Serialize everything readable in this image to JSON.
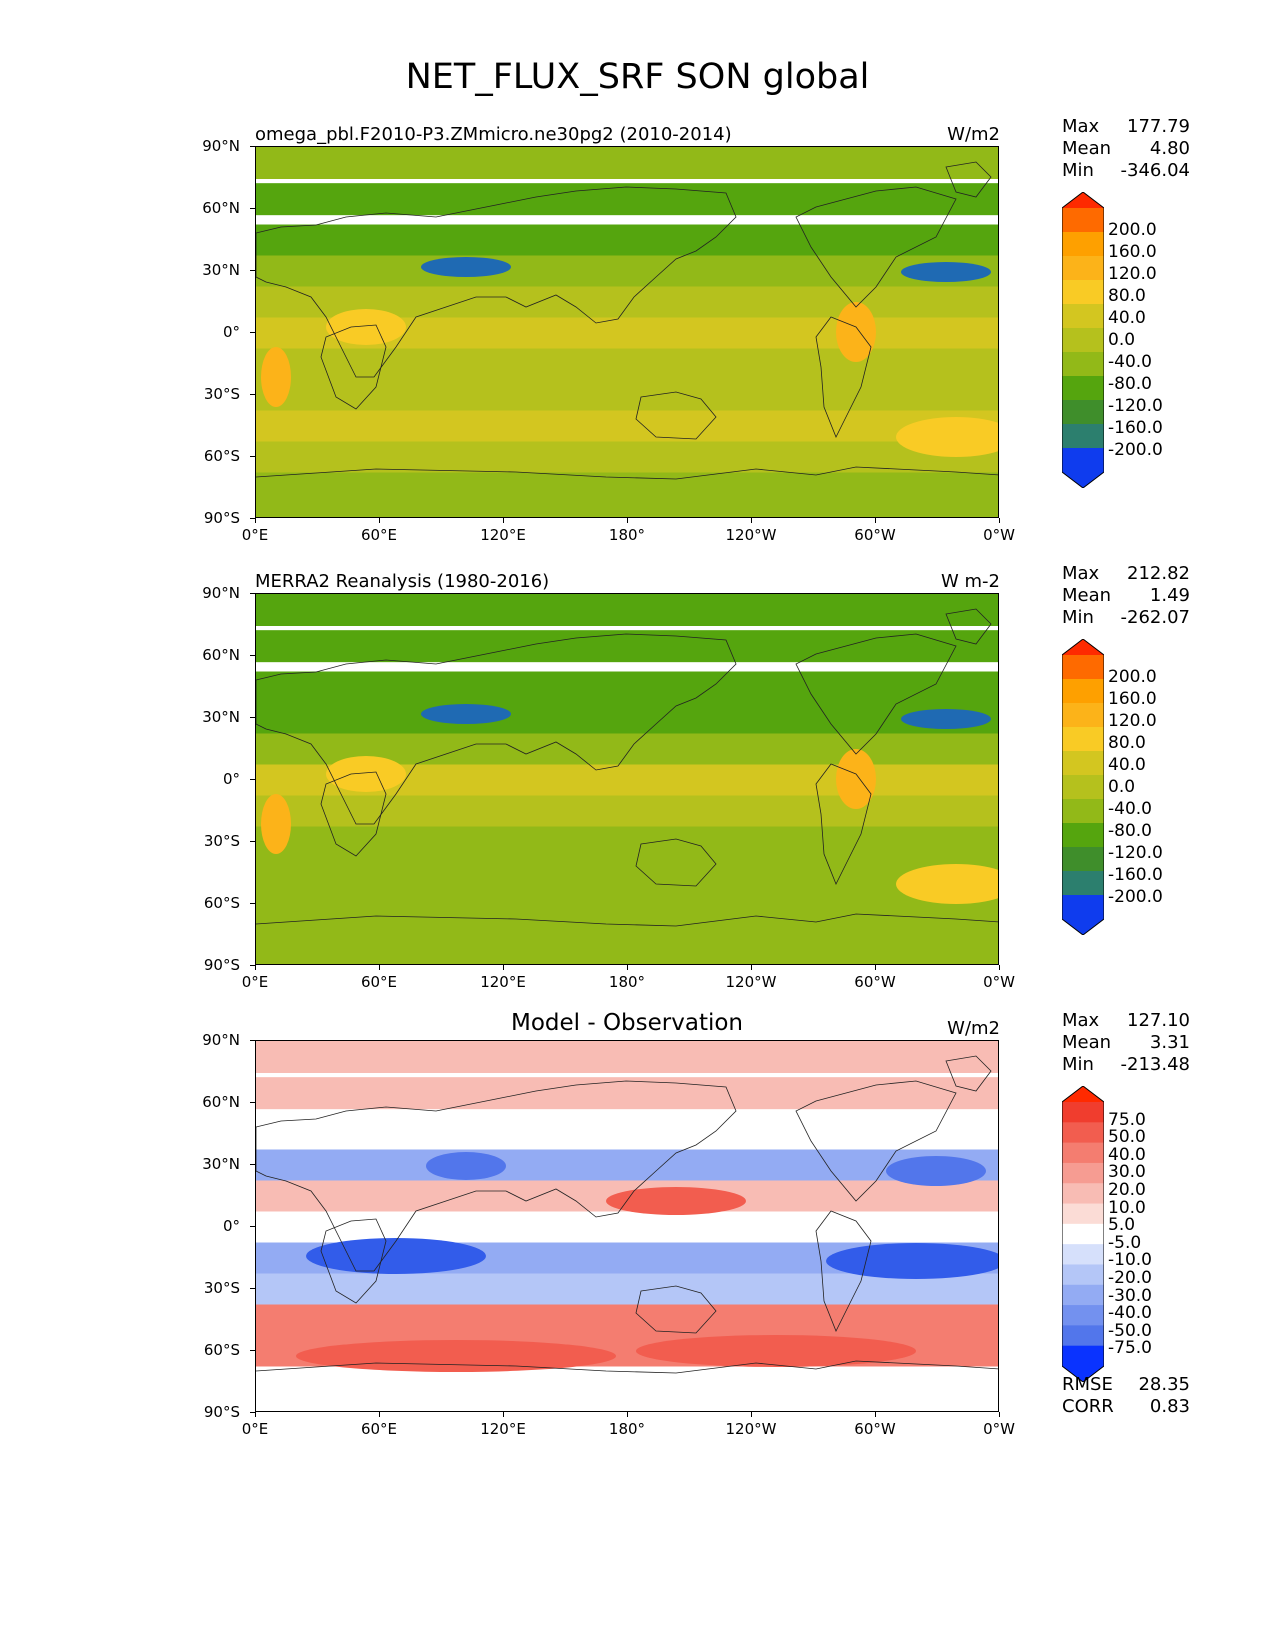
{
  "figure": {
    "title": "NET_FLUX_SRF SON global"
  },
  "axes": {
    "yticks": [
      "90°N",
      "60°N",
      "30°N",
      "0°",
      "30°S",
      "60°S",
      "90°S"
    ],
    "xticks": [
      "0°E",
      "60°E",
      "120°E",
      "180°",
      "120°W",
      "60°W",
      "0°W"
    ]
  },
  "panels": [
    {
      "left_title": "omega_pbl.F2010-P3.ZMmicro.ne30pg2 (2010-2014)",
      "center_title": "",
      "units": "W/m2",
      "stats": [
        {
          "label": "Max",
          "value": "177.79"
        },
        {
          "label": "Mean",
          "value": "4.80"
        },
        {
          "label": "Min",
          "value": "-346.04"
        }
      ],
      "colorbar": {
        "labels": [
          "200.0",
          "160.0",
          "120.0",
          "80.0",
          "40.0",
          "0.0",
          "-40.0",
          "-80.0",
          "-120.0",
          "-160.0",
          "-200.0"
        ],
        "colors": [
          "#fe2a00",
          "#fe6a00",
          "#fea000",
          "#fcb319",
          "#f9cb25",
          "#d3c620",
          "#b5c11d",
          "#92b918",
          "#55a50e",
          "#3f8e2b",
          "#2c7f6e",
          "#1f6ab3",
          "#0f3cee"
        ]
      }
    },
    {
      "left_title": "MERRA2 Reanalysis (1980-2016)",
      "center_title": "",
      "units": "W m-2",
      "stats": [
        {
          "label": "Max",
          "value": "212.82"
        },
        {
          "label": "Mean",
          "value": "1.49"
        },
        {
          "label": "Min",
          "value": "-262.07"
        }
      ],
      "colorbar": {
        "labels": [
          "200.0",
          "160.0",
          "120.0",
          "80.0",
          "40.0",
          "0.0",
          "-40.0",
          "-80.0",
          "-120.0",
          "-160.0",
          "-200.0"
        ],
        "colors": [
          "#fe2a00",
          "#fe6a00",
          "#fea000",
          "#fcb319",
          "#f9cb25",
          "#d3c620",
          "#b5c11d",
          "#92b918",
          "#55a50e",
          "#3f8e2b",
          "#2c7f6e",
          "#1f6ab3",
          "#0f3cee"
        ]
      }
    },
    {
      "left_title": "",
      "center_title": "Model - Observation",
      "units": "W/m2",
      "stats": [
        {
          "label": "Max",
          "value": "127.10"
        },
        {
          "label": "Mean",
          "value": "3.31"
        },
        {
          "label": "Min",
          "value": "-213.48"
        }
      ],
      "colorbar": {
        "labels": [
          "75.0",
          "50.0",
          "40.0",
          "30.0",
          "20.0",
          "10.0",
          "5.0",
          "-5.0",
          "-10.0",
          "-20.0",
          "-30.0",
          "-40.0",
          "-50.0",
          "-75.0"
        ],
        "colors": [
          "#ff2a00",
          "#f03d2e",
          "#f25d4f",
          "#f47d70",
          "#f69c92",
          "#f8bcb4",
          "#fbdcd6",
          "#ffffff",
          "#d6e0fb",
          "#b4c6f7",
          "#93abf3",
          "#7391ef",
          "#5276eb",
          "#325cea",
          "#0a33ff"
        ]
      },
      "rmse": [
        {
          "label": "RMSE",
          "value": "28.35"
        },
        {
          "label": "CORR",
          "value": "0.83"
        }
      ]
    }
  ],
  "chart_data": [
    {
      "type": "heatmap",
      "title": "omega_pbl.F2010-P3.ZMmicro.ne30pg2 (2010-2014)",
      "variable": "NET_FLUX_SRF SON global",
      "units": "W/m2",
      "xlim": [
        0,
        360
      ],
      "ylim": [
        -90,
        90
      ],
      "xlabel": "",
      "ylabel": "",
      "stats": {
        "max": 177.79,
        "mean": 4.8,
        "min": -346.04
      },
      "levels": [
        -200,
        -160,
        -120,
        -80,
        -40,
        0,
        40,
        80,
        120,
        160,
        200
      ],
      "zonal_mean_approx": [
        {
          "lat": 85,
          "value": -5
        },
        {
          "lat": 65,
          "value": -40
        },
        {
          "lat": 45,
          "value": -60
        },
        {
          "lat": 30,
          "value": -20
        },
        {
          "lat": 15,
          "value": 20
        },
        {
          "lat": 0,
          "value": 70
        },
        {
          "lat": -15,
          "value": 40
        },
        {
          "lat": -30,
          "value": 10
        },
        {
          "lat": -45,
          "value": 50
        },
        {
          "lat": -60,
          "value": 40
        },
        {
          "lat": -75,
          "value": 0
        },
        {
          "lat": -85,
          "value": -10
        }
      ]
    },
    {
      "type": "heatmap",
      "title": "MERRA2 Reanalysis (1980-2016)",
      "variable": "NET_FLUX_SRF SON global",
      "units": "W m-2",
      "xlim": [
        0,
        360
      ],
      "ylim": [
        -90,
        90
      ],
      "xlabel": "",
      "ylabel": "",
      "stats": {
        "max": 212.82,
        "mean": 1.49,
        "min": -262.07
      },
      "levels": [
        -200,
        -160,
        -120,
        -80,
        -40,
        0,
        40,
        80,
        120,
        160,
        200
      ],
      "zonal_mean_approx": [
        {
          "lat": 85,
          "value": -40
        },
        {
          "lat": 65,
          "value": -40
        },
        {
          "lat": 45,
          "value": -60
        },
        {
          "lat": 30,
          "value": -40
        },
        {
          "lat": 15,
          "value": 0
        },
        {
          "lat": 0,
          "value": 60
        },
        {
          "lat": -15,
          "value": 30
        },
        {
          "lat": -30,
          "value": -10
        },
        {
          "lat": -45,
          "value": -20
        },
        {
          "lat": -60,
          "value": -30
        },
        {
          "lat": -75,
          "value": 0
        },
        {
          "lat": -85,
          "value": 0
        }
      ]
    },
    {
      "type": "heatmap",
      "title": "Model - Observation",
      "variable": "NET_FLUX_SRF SON global",
      "units": "W/m2",
      "xlim": [
        0,
        360
      ],
      "ylim": [
        -90,
        90
      ],
      "xlabel": "",
      "ylabel": "",
      "stats": {
        "max": 127.1,
        "mean": 3.31,
        "min": -213.48,
        "rmse": 28.35,
        "corr": 0.83
      },
      "levels": [
        -75,
        -50,
        -40,
        -30,
        -20,
        -10,
        -5,
        5,
        10,
        20,
        30,
        40,
        50,
        75
      ],
      "zonal_mean_approx": [
        {
          "lat": 85,
          "value": 20
        },
        {
          "lat": 65,
          "value": 15
        },
        {
          "lat": 45,
          "value": 5
        },
        {
          "lat": 30,
          "value": -20
        },
        {
          "lat": 15,
          "value": 20
        },
        {
          "lat": 0,
          "value": 5
        },
        {
          "lat": -15,
          "value": -20
        },
        {
          "lat": -30,
          "value": -10
        },
        {
          "lat": -45,
          "value": 40
        },
        {
          "lat": -60,
          "value": 40
        },
        {
          "lat": -75,
          "value": 5
        },
        {
          "lat": -85,
          "value": 0
        }
      ]
    }
  ]
}
